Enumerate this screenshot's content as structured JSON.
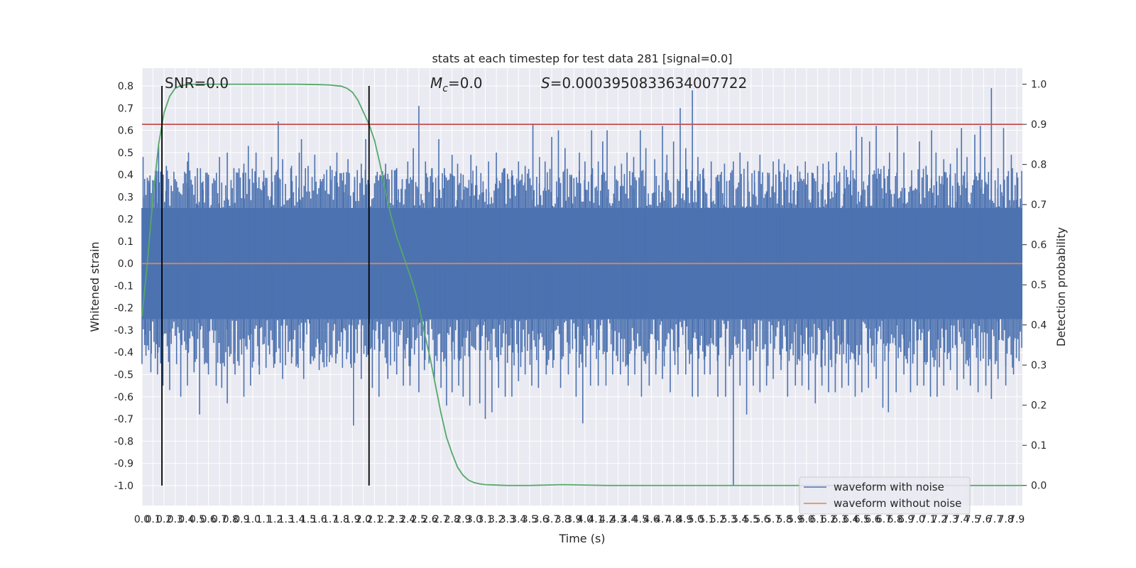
{
  "chart_data": {
    "type": "line",
    "title": "stats at each timestep for test data 281 [signal=0.0]",
    "xlabel": "Time (s)",
    "ylabel": "Whitened strain",
    "y2label": "Detection probability",
    "xlim": [
      0.0,
      7.95
    ],
    "ylim": [
      -1.09,
      0.88
    ],
    "y2lim": [
      -0.05,
      1.04
    ],
    "x_ticks": [
      0.0,
      0.1,
      0.2,
      0.3,
      0.4,
      0.5,
      0.6,
      0.7,
      0.8,
      0.9,
      1.0,
      1.1,
      1.2,
      1.3,
      1.4,
      1.5,
      1.6,
      1.7,
      1.8,
      1.9,
      2.0,
      2.1,
      2.2,
      2.3,
      2.4,
      2.5,
      2.6,
      2.7,
      2.8,
      2.9,
      3.0,
      3.1,
      3.2,
      3.3,
      3.4,
      3.5,
      3.6,
      3.7,
      3.8,
      3.9,
      4.0,
      4.1,
      4.2,
      4.3,
      4.4,
      4.5,
      4.6,
      4.7,
      4.8,
      4.9,
      5.0,
      5.1,
      5.2,
      5.3,
      5.4,
      5.5,
      5.6,
      5.7,
      5.8,
      5.9,
      6.0,
      6.1,
      6.2,
      6.3,
      6.4,
      6.5,
      6.6,
      6.7,
      6.8,
      6.9,
      7.0,
      7.1,
      7.2,
      7.3,
      7.4,
      7.5,
      7.6,
      7.7,
      7.8,
      7.9
    ],
    "y_ticks": [
      0.8,
      0.7,
      0.6,
      0.5,
      0.4,
      0.3,
      0.2,
      0.1,
      0.0,
      -0.1,
      -0.2,
      -0.3,
      -0.4,
      -0.5,
      -0.6,
      -0.7,
      -0.8,
      -0.9,
      -1.0
    ],
    "y2_ticks": [
      1.0,
      0.9,
      0.8,
      0.7,
      0.6,
      0.5,
      0.4,
      0.3,
      0.2,
      0.1,
      0.0
    ],
    "grid": true,
    "legend_position": "lower-right",
    "annotations": {
      "snr": "SNR=0.0",
      "mc_symbol": "M",
      "mc_sub": "c",
      "mc_value": "=0.0",
      "s_symbol": "S",
      "s_value": "=0.0003950833634007722"
    },
    "vertical_lines": [
      0.18,
      2.05
    ],
    "threshold_probability": 0.9,
    "noise_envelope": {
      "dense_amplitude": 0.25,
      "spike_peaks_up": [
        [
          0.01,
          0.48
        ],
        [
          0.07,
          0.36
        ],
        [
          0.13,
          0.42
        ],
        [
          0.15,
          0.53
        ],
        [
          0.22,
          0.44
        ],
        [
          0.3,
          0.38
        ],
        [
          0.41,
          0.46
        ],
        [
          0.42,
          0.5
        ],
        [
          0.5,
          0.43
        ],
        [
          0.55,
          0.37
        ],
        [
          0.6,
          0.4
        ],
        [
          0.7,
          0.48
        ],
        [
          0.77,
          0.5
        ],
        [
          0.83,
          0.43
        ],
        [
          0.92,
          0.45
        ],
        [
          0.96,
          0.53
        ],
        [
          1.03,
          0.5
        ],
        [
          1.1,
          0.42
        ],
        [
          1.17,
          0.48
        ],
        [
          1.23,
          0.64
        ],
        [
          1.27,
          0.47
        ],
        [
          1.35,
          0.44
        ],
        [
          1.42,
          0.5
        ],
        [
          1.44,
          0.56
        ],
        [
          1.5,
          0.44
        ],
        [
          1.56,
          0.49
        ],
        [
          1.61,
          0.38
        ],
        [
          1.7,
          0.44
        ],
        [
          1.76,
          0.5
        ],
        [
          1.82,
          0.41
        ],
        [
          1.86,
          0.47
        ],
        [
          1.92,
          0.39
        ],
        [
          1.98,
          0.45
        ],
        [
          2.02,
          0.56
        ],
        [
          2.15,
          0.4
        ],
        [
          2.2,
          0.45
        ],
        [
          2.3,
          0.43
        ],
        [
          2.35,
          0.38
        ],
        [
          2.4,
          0.46
        ],
        [
          2.45,
          0.52
        ],
        [
          2.5,
          0.71
        ],
        [
          2.56,
          0.46
        ],
        [
          2.62,
          0.43
        ],
        [
          2.68,
          0.56
        ],
        [
          2.73,
          0.43
        ],
        [
          2.8,
          0.49
        ],
        [
          2.85,
          0.45
        ],
        [
          2.9,
          0.4
        ],
        [
          2.97,
          0.49
        ],
        [
          3.02,
          0.44
        ],
        [
          3.08,
          0.37
        ],
        [
          3.13,
          0.46
        ],
        [
          3.2,
          0.5
        ],
        [
          3.27,
          0.43
        ],
        [
          3.34,
          0.42
        ],
        [
          3.4,
          0.46
        ],
        [
          3.46,
          0.44
        ],
        [
          3.53,
          0.63
        ],
        [
          3.59,
          0.48
        ],
        [
          3.64,
          0.46
        ],
        [
          3.7,
          0.57
        ],
        [
          3.76,
          0.6
        ],
        [
          3.82,
          0.52
        ],
        [
          3.88,
          0.4
        ],
        [
          3.95,
          0.5
        ],
        [
          4.0,
          0.46
        ],
        [
          4.06,
          0.6
        ],
        [
          4.12,
          0.46
        ],
        [
          4.16,
          0.55
        ],
        [
          4.2,
          0.6
        ],
        [
          4.27,
          0.44
        ],
        [
          4.33,
          0.45
        ],
        [
          4.38,
          0.5
        ],
        [
          4.44,
          0.48
        ],
        [
          4.5,
          0.6
        ],
        [
          4.55,
          0.52
        ],
        [
          4.63,
          0.47
        ],
        [
          4.7,
          0.62
        ],
        [
          4.74,
          0.49
        ],
        [
          4.8,
          0.55
        ],
        [
          4.86,
          0.7
        ],
        [
          4.91,
          0.52
        ],
        [
          4.97,
          0.78
        ],
        [
          5.02,
          0.48
        ],
        [
          5.07,
          0.43
        ],
        [
          5.14,
          0.46
        ],
        [
          5.2,
          0.4
        ],
        [
          5.26,
          0.45
        ],
        [
          5.34,
          0.46
        ],
        [
          5.4,
          0.5
        ],
        [
          5.47,
          0.46
        ],
        [
          5.53,
          0.42
        ],
        [
          5.58,
          0.49
        ],
        [
          5.65,
          0.41
        ],
        [
          5.7,
          0.46
        ],
        [
          5.75,
          0.47
        ],
        [
          5.8,
          0.45
        ],
        [
          5.86,
          0.4
        ],
        [
          5.92,
          0.44
        ],
        [
          5.99,
          0.46
        ],
        [
          6.05,
          0.41
        ],
        [
          6.1,
          0.44
        ],
        [
          6.15,
          0.45
        ],
        [
          6.2,
          0.46
        ],
        [
          6.27,
          0.5
        ],
        [
          6.34,
          0.44
        ],
        [
          6.4,
          0.51
        ],
        [
          6.45,
          0.62
        ],
        [
          6.5,
          0.57
        ],
        [
          6.57,
          0.55
        ],
        [
          6.63,
          0.62
        ],
        [
          6.7,
          0.44
        ],
        [
          6.75,
          0.5
        ],
        [
          6.82,
          0.62
        ],
        [
          6.88,
          0.5
        ],
        [
          6.95,
          0.42
        ],
        [
          7.02,
          0.55
        ],
        [
          7.08,
          0.44
        ],
        [
          7.13,
          0.6
        ],
        [
          7.17,
          0.5
        ],
        [
          7.24,
          0.47
        ],
        [
          7.3,
          0.45
        ],
        [
          7.36,
          0.52
        ],
        [
          7.4,
          0.61
        ],
        [
          7.45,
          0.48
        ],
        [
          7.52,
          0.58
        ],
        [
          7.57,
          0.62
        ],
        [
          7.61,
          0.48
        ],
        [
          7.67,
          0.79
        ],
        [
          7.73,
          0.43
        ],
        [
          7.78,
          0.61
        ],
        [
          7.85,
          0.49
        ],
        [
          7.9,
          0.41
        ]
      ],
      "spike_peaks_down": [
        [
          0.03,
          -0.32
        ],
        [
          0.08,
          -0.49
        ],
        [
          0.14,
          -0.5
        ],
        [
          0.19,
          -0.55
        ],
        [
          0.25,
          -0.57
        ],
        [
          0.35,
          -0.6
        ],
        [
          0.41,
          -0.55
        ],
        [
          0.47,
          -0.49
        ],
        [
          0.52,
          -0.68
        ],
        [
          0.6,
          -0.5
        ],
        [
          0.67,
          -0.55
        ],
        [
          0.72,
          -0.56
        ],
        [
          0.77,
          -0.63
        ],
        [
          0.84,
          -0.5
        ],
        [
          0.92,
          -0.6
        ],
        [
          0.98,
          -0.55
        ],
        [
          1.06,
          -0.5
        ],
        [
          1.12,
          -0.47
        ],
        [
          1.19,
          -0.47
        ],
        [
          1.27,
          -0.52
        ],
        [
          1.35,
          -0.45
        ],
        [
          1.41,
          -0.47
        ],
        [
          1.46,
          -0.52
        ],
        [
          1.52,
          -0.45
        ],
        [
          1.6,
          -0.48
        ],
        [
          1.67,
          -0.42
        ],
        [
          1.75,
          -0.45
        ],
        [
          1.81,
          -0.47
        ],
        [
          1.89,
          -0.47
        ],
        [
          1.91,
          -0.73
        ],
        [
          1.98,
          -0.52
        ],
        [
          2.08,
          -0.56
        ],
        [
          2.14,
          -0.6
        ],
        [
          2.22,
          -0.52
        ],
        [
          2.3,
          -0.5
        ],
        [
          2.36,
          -0.55
        ],
        [
          2.42,
          -0.55
        ],
        [
          2.5,
          -0.58
        ],
        [
          2.55,
          -0.48
        ],
        [
          2.64,
          -0.52
        ],
        [
          2.7,
          -0.56
        ],
        [
          2.75,
          -0.64
        ],
        [
          2.8,
          -0.58
        ],
        [
          2.86,
          -0.55
        ],
        [
          2.9,
          -0.6
        ],
        [
          2.96,
          -0.64
        ],
        [
          3.05,
          -0.63
        ],
        [
          3.1,
          -0.7
        ],
        [
          3.16,
          -0.67
        ],
        [
          3.22,
          -0.56
        ],
        [
          3.28,
          -0.6
        ],
        [
          3.34,
          -0.6
        ],
        [
          3.4,
          -0.53
        ],
        [
          3.46,
          -0.5
        ],
        [
          3.52,
          -0.55
        ],
        [
          3.58,
          -0.56
        ],
        [
          3.65,
          -0.5
        ],
        [
          3.71,
          -0.47
        ],
        [
          3.78,
          -0.56
        ],
        [
          3.85,
          -0.5
        ],
        [
          3.92,
          -0.6
        ],
        [
          3.98,
          -0.72
        ],
        [
          4.05,
          -0.55
        ],
        [
          4.12,
          -0.55
        ],
        [
          4.19,
          -0.55
        ],
        [
          4.25,
          -0.5
        ],
        [
          4.32,
          -0.5
        ],
        [
          4.39,
          -0.55
        ],
        [
          4.45,
          -0.5
        ],
        [
          4.51,
          -0.6
        ],
        [
          4.58,
          -0.55
        ],
        [
          4.64,
          -0.5
        ],
        [
          4.7,
          -0.52
        ],
        [
          4.77,
          -0.58
        ],
        [
          4.84,
          -0.5
        ],
        [
          4.91,
          -0.5
        ],
        [
          4.97,
          -0.6
        ],
        [
          5.02,
          -0.6
        ],
        [
          5.08,
          -0.5
        ],
        [
          5.13,
          -0.5
        ],
        [
          5.2,
          -0.6
        ],
        [
          5.27,
          -0.6
        ],
        [
          5.34,
          -1.0
        ],
        [
          5.4,
          -0.55
        ],
        [
          5.46,
          -0.68
        ],
        [
          5.52,
          -0.55
        ],
        [
          5.58,
          -0.58
        ],
        [
          5.64,
          -0.55
        ],
        [
          5.7,
          -0.52
        ],
        [
          5.77,
          -0.48
        ],
        [
          5.83,
          -0.6
        ],
        [
          5.9,
          -0.55
        ],
        [
          5.96,
          -0.55
        ],
        [
          6.02,
          -0.57
        ],
        [
          6.08,
          -0.63
        ],
        [
          6.14,
          -0.55
        ],
        [
          6.2,
          -0.58
        ],
        [
          6.26,
          -0.58
        ],
        [
          6.32,
          -0.56
        ],
        [
          6.38,
          -0.55
        ],
        [
          6.44,
          -0.6
        ],
        [
          6.5,
          -0.58
        ],
        [
          6.56,
          -0.56
        ],
        [
          6.63,
          -0.52
        ],
        [
          6.69,
          -0.65
        ],
        [
          6.74,
          -0.67
        ],
        [
          6.81,
          -0.58
        ],
        [
          6.88,
          -0.5
        ],
        [
          6.94,
          -0.58
        ],
        [
          7.0,
          -0.55
        ],
        [
          7.06,
          -0.55
        ],
        [
          7.12,
          -0.6
        ],
        [
          7.18,
          -0.6
        ],
        [
          7.24,
          -0.55
        ],
        [
          7.3,
          -0.48
        ],
        [
          7.36,
          -0.57
        ],
        [
          7.42,
          -0.52
        ],
        [
          7.48,
          -0.55
        ],
        [
          7.55,
          -0.58
        ],
        [
          7.62,
          -0.55
        ],
        [
          7.67,
          -0.61
        ],
        [
          7.73,
          -0.52
        ],
        [
          7.8,
          -0.55
        ],
        [
          7.87,
          -0.5
        ],
        [
          7.92,
          -0.44
        ]
      ]
    },
    "series": [
      {
        "name": "waveform with noise",
        "color": "#4c72b0",
        "kind": "noise"
      },
      {
        "name": "waveform without noise",
        "color": "#dd8452",
        "x": [
          0.0,
          7.95
        ],
        "y": [
          0.0,
          0.0
        ]
      },
      {
        "color": "#55a868",
        "axis": "right",
        "x": [
          0.0,
          0.05,
          0.1,
          0.15,
          0.2,
          0.25,
          0.3,
          0.35,
          0.4,
          0.45,
          0.5,
          0.6,
          0.8,
          1.0,
          1.2,
          1.4,
          1.6,
          1.7,
          1.8,
          1.85,
          1.9,
          1.95,
          2.0,
          2.05,
          2.1,
          2.15,
          2.2,
          2.25,
          2.3,
          2.35,
          2.4,
          2.45,
          2.5,
          2.55,
          2.6,
          2.65,
          2.7,
          2.75,
          2.8,
          2.85,
          2.9,
          2.95,
          3.0,
          3.05,
          3.1,
          3.2,
          3.3,
          3.5,
          3.8,
          4.2,
          5.0,
          6.0,
          7.0,
          7.95
        ],
        "y": [
          0.42,
          0.56,
          0.72,
          0.85,
          0.93,
          0.97,
          0.99,
          0.996,
          0.999,
          1.0,
          1.0,
          1.0,
          1.0,
          1.0,
          1.0,
          1.0,
          0.999,
          0.998,
          0.995,
          0.99,
          0.98,
          0.96,
          0.93,
          0.9,
          0.86,
          0.8,
          0.73,
          0.67,
          0.62,
          0.58,
          0.54,
          0.5,
          0.45,
          0.38,
          0.32,
          0.25,
          0.18,
          0.12,
          0.08,
          0.045,
          0.025,
          0.013,
          0.007,
          0.004,
          0.002,
          0.001,
          0.0,
          0.0,
          0.002,
          0.0,
          0.0,
          0.0,
          0.0,
          0.0
        ]
      },
      {
        "color": "#c44e52",
        "axis": "right",
        "x": [
          0.0,
          7.95
        ],
        "y": [
          0.9,
          0.9
        ]
      }
    ]
  }
}
